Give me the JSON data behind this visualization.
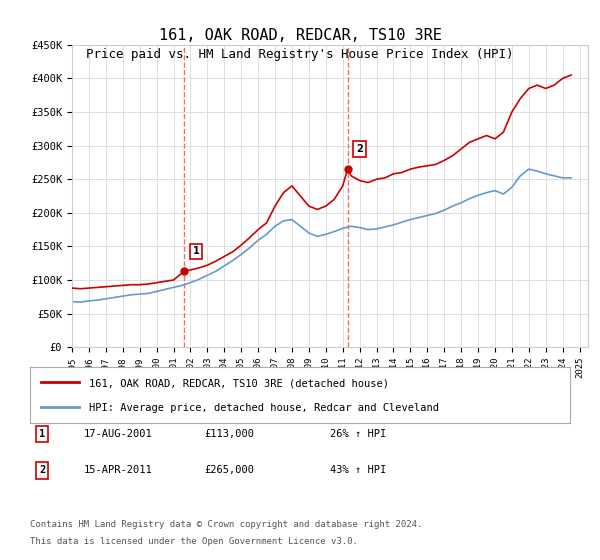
{
  "title": "161, OAK ROAD, REDCAR, TS10 3RE",
  "subtitle": "Price paid vs. HM Land Registry's House Price Index (HPI)",
  "title_fontsize": 11,
  "subtitle_fontsize": 9,
  "ylim": [
    0,
    450000
  ],
  "yticks": [
    0,
    50000,
    100000,
    150000,
    200000,
    250000,
    300000,
    350000,
    400000,
    450000
  ],
  "ytick_labels": [
    "£0",
    "£50K",
    "£100K",
    "£150K",
    "£200K",
    "£250K",
    "£300K",
    "£350K",
    "£400K",
    "£450K"
  ],
  "xlim": [
    1995.0,
    2025.5
  ],
  "xtick_years": [
    1995,
    1996,
    1997,
    1998,
    1999,
    2000,
    2001,
    2002,
    2003,
    2004,
    2005,
    2006,
    2007,
    2008,
    2009,
    2010,
    2011,
    2012,
    2013,
    2014,
    2015,
    2016,
    2017,
    2018,
    2019,
    2020,
    2021,
    2022,
    2023,
    2024,
    2025
  ],
  "red_line_color": "#cc0000",
  "blue_line_color": "#6699cc",
  "marker1_x": 2001.63,
  "marker1_y": 113000,
  "marker1_label": "1",
  "marker2_x": 2011.29,
  "marker2_y": 265000,
  "marker2_label": "2",
  "vline_color": "#ff6666",
  "vline_style": "--",
  "legend_red_label": "161, OAK ROAD, REDCAR, TS10 3RE (detached house)",
  "legend_blue_label": "HPI: Average price, detached house, Redcar and Cleveland",
  "table_entries": [
    {
      "num": "1",
      "date": "17-AUG-2001",
      "price": "£113,000",
      "pct": "26% ↑ HPI"
    },
    {
      "num": "2",
      "date": "15-APR-2011",
      "price": "£265,000",
      "pct": "43% ↑ HPI"
    }
  ],
  "footer": "Contains HM Land Registry data © Crown copyright and database right 2024.\nThis data is licensed under the Open Government Licence v3.0.",
  "background_color": "#ffffff",
  "grid_color": "#dddddd",
  "red_x": [
    1995.0,
    1995.5,
    1996.0,
    1996.5,
    1997.0,
    1997.5,
    1998.0,
    1998.5,
    1999.0,
    1999.5,
    2000.0,
    2000.5,
    2001.0,
    2001.63,
    2002.0,
    2002.5,
    2003.0,
    2003.5,
    2004.0,
    2004.5,
    2005.0,
    2005.5,
    2006.0,
    2006.5,
    2007.0,
    2007.5,
    2008.0,
    2008.5,
    2009.0,
    2009.5,
    2010.0,
    2010.5,
    2011.0,
    2011.29,
    2011.5,
    2012.0,
    2012.5,
    2013.0,
    2013.5,
    2014.0,
    2014.5,
    2015.0,
    2015.5,
    2016.0,
    2016.5,
    2017.0,
    2017.5,
    2018.0,
    2018.5,
    2019.0,
    2019.5,
    2020.0,
    2020.5,
    2021.0,
    2021.5,
    2022.0,
    2022.5,
    2023.0,
    2023.5,
    2024.0,
    2024.5
  ],
  "red_y": [
    88000,
    87000,
    88000,
    89000,
    90000,
    91000,
    92000,
    93000,
    93000,
    94000,
    96000,
    98000,
    100000,
    113000,
    115000,
    118000,
    122000,
    128000,
    135000,
    142000,
    152000,
    163000,
    175000,
    185000,
    210000,
    230000,
    240000,
    225000,
    210000,
    205000,
    210000,
    220000,
    240000,
    265000,
    255000,
    248000,
    245000,
    250000,
    252000,
    258000,
    260000,
    265000,
    268000,
    270000,
    272000,
    278000,
    285000,
    295000,
    305000,
    310000,
    315000,
    310000,
    320000,
    350000,
    370000,
    385000,
    390000,
    385000,
    390000,
    400000,
    405000
  ],
  "blue_x": [
    1995.0,
    1995.5,
    1996.0,
    1996.5,
    1997.0,
    1997.5,
    1998.0,
    1998.5,
    1999.0,
    1999.5,
    2000.0,
    2000.5,
    2001.0,
    2001.5,
    2002.0,
    2002.5,
    2003.0,
    2003.5,
    2004.0,
    2004.5,
    2005.0,
    2005.5,
    2006.0,
    2006.5,
    2007.0,
    2007.5,
    2008.0,
    2008.5,
    2009.0,
    2009.5,
    2010.0,
    2010.5,
    2011.0,
    2011.5,
    2012.0,
    2012.5,
    2013.0,
    2013.5,
    2014.0,
    2014.5,
    2015.0,
    2015.5,
    2016.0,
    2016.5,
    2017.0,
    2017.5,
    2018.0,
    2018.5,
    2019.0,
    2019.5,
    2020.0,
    2020.5,
    2021.0,
    2021.5,
    2022.0,
    2022.5,
    2023.0,
    2023.5,
    2024.0,
    2024.5
  ],
  "blue_y": [
    68000,
    67000,
    69000,
    70000,
    72000,
    74000,
    76000,
    78000,
    79000,
    80000,
    83000,
    86000,
    89000,
    92000,
    96000,
    101000,
    107000,
    113000,
    121000,
    129000,
    138000,
    148000,
    159000,
    168000,
    180000,
    188000,
    190000,
    180000,
    170000,
    165000,
    168000,
    172000,
    177000,
    180000,
    178000,
    175000,
    176000,
    179000,
    182000,
    186000,
    190000,
    193000,
    196000,
    199000,
    204000,
    210000,
    215000,
    221000,
    226000,
    230000,
    233000,
    228000,
    238000,
    255000,
    265000,
    262000,
    258000,
    255000,
    252000,
    252000
  ]
}
